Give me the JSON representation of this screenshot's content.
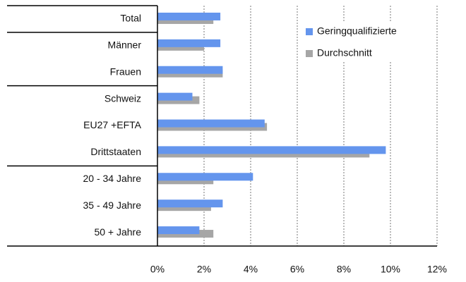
{
  "chart_data": {
    "type": "hbar",
    "categories": [
      "Total",
      "Männer",
      "Frauen",
      "Schweiz",
      "EU27  +EFTA",
      "Drittstaaten",
      "20 - 34 Jahre",
      "35 - 49 Jahre",
      "50 + Jahre"
    ],
    "series": [
      {
        "name": "Geringqualifizierte",
        "color": "#6495ed",
        "values": [
          2.7,
          2.7,
          2.8,
          1.5,
          4.6,
          9.8,
          4.1,
          2.8,
          1.8
        ]
      },
      {
        "name": "Durchschnitt",
        "color": "#a6a6a6",
        "values": [
          2.4,
          2.0,
          2.8,
          1.8,
          4.7,
          9.1,
          2.4,
          2.3,
          2.4
        ]
      }
    ],
    "xlim": [
      0,
      12
    ],
    "xticks": [
      {
        "value": 0,
        "label": "0%"
      },
      {
        "value": 2,
        "label": "2%"
      },
      {
        "value": 4,
        "label": "4%"
      },
      {
        "value": 6,
        "label": "6%"
      },
      {
        "value": 8,
        "label": "8%"
      },
      {
        "value": 10,
        "label": "10%"
      },
      {
        "value": 12,
        "label": "12%"
      }
    ],
    "grid": true,
    "legend": "upper right"
  }
}
